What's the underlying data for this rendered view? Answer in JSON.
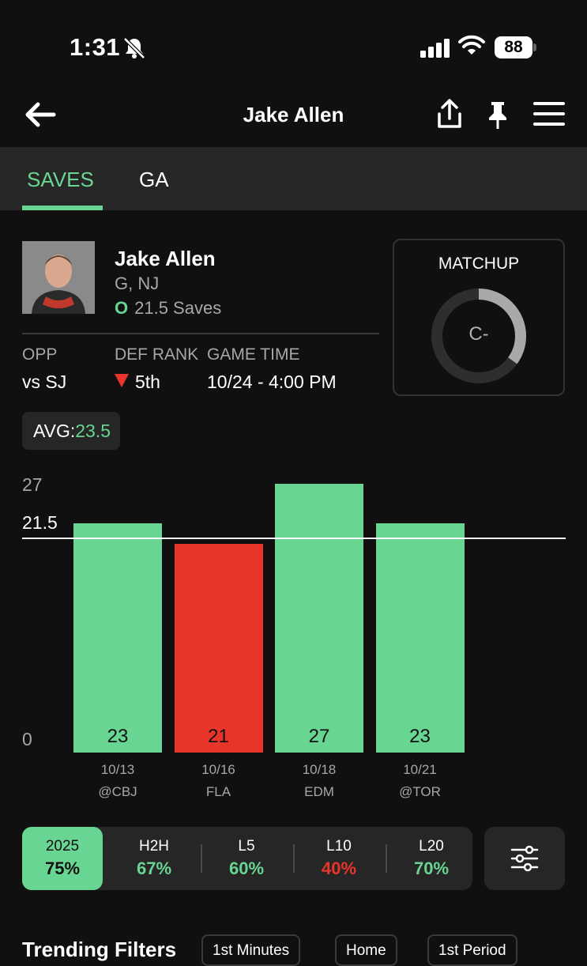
{
  "status_bar": {
    "time": "1:31",
    "battery": "88"
  },
  "nav": {
    "title": "Jake Allen"
  },
  "tabs": [
    {
      "label": "SAVES",
      "active": true
    },
    {
      "label": "GA",
      "active": false
    }
  ],
  "player": {
    "name": "Jake Allen",
    "position_team": "G, NJ",
    "ou": "O",
    "line_text": "21.5 Saves"
  },
  "game_info": {
    "opp_label": "OPP",
    "opp_value": "vs SJ",
    "def_rank_label": "DEF RANK",
    "def_rank_value": "5th",
    "game_time_label": "GAME TIME",
    "game_time_value": "10/24 - 4:00 PM"
  },
  "matchup": {
    "title": "MATCHUP",
    "grade": "C-",
    "ring_fill": 0.35
  },
  "avg": {
    "label": "AVG:",
    "value": "23.5"
  },
  "chart_data": {
    "type": "bar",
    "categories": [
      "10/13 @CBJ",
      "10/16 FLA",
      "10/18 EDM",
      "10/21 @TOR"
    ],
    "dates": [
      "10/13",
      "10/16",
      "10/18",
      "10/21"
    ],
    "opponents": [
      "@CBJ",
      "FLA",
      "EDM",
      "@TOR"
    ],
    "values": [
      23,
      21,
      27,
      23
    ],
    "line": 21.5,
    "y_ticks": [
      "27",
      "21.5",
      "0"
    ],
    "ylim": [
      0,
      27
    ],
    "colors": {
      "over": "#68d593",
      "under": "#e8352a"
    }
  },
  "filters": [
    {
      "label": "2025",
      "pct": "75%",
      "active": true,
      "color": "dark"
    },
    {
      "label": "H2H",
      "pct": "67%",
      "active": false,
      "color": "green"
    },
    {
      "label": "L5",
      "pct": "60%",
      "active": false,
      "color": "green"
    },
    {
      "label": "L10",
      "pct": "40%",
      "active": false,
      "color": "red"
    },
    {
      "label": "L20",
      "pct": "70%",
      "active": false,
      "color": "green"
    }
  ],
  "trending": {
    "title": "Trending Filters",
    "chips": [
      "1st Minutes",
      "Home",
      "1st Period"
    ]
  },
  "colors": {
    "accent": "#68d593",
    "negative": "#e8352a",
    "background": "#101010",
    "surface": "#262626"
  },
  "icons": [
    "back-arrow-icon",
    "share-icon",
    "pin-icon",
    "menu-icon",
    "sliders-icon",
    "bell-slash-icon",
    "signal-icon",
    "wifi-icon"
  ]
}
